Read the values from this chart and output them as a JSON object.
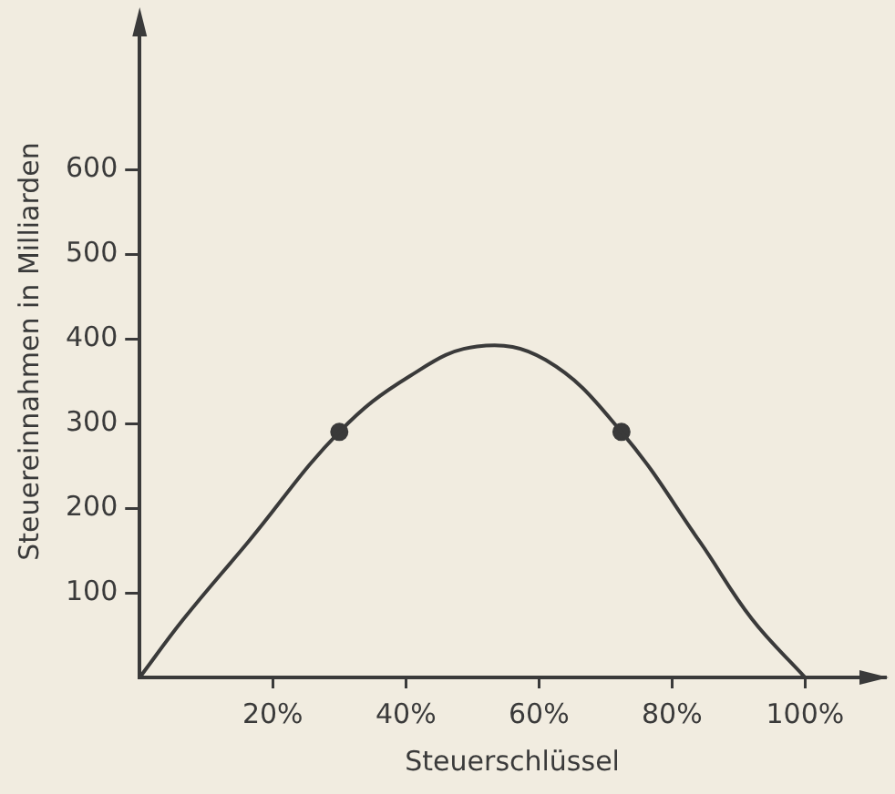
{
  "chart_data": {
    "type": "line",
    "xlabel": "Steuerschlüssel",
    "ylabel": "Steuereinnahmen in Milliarden",
    "xlim": [
      0,
      112
    ],
    "ylim": [
      0,
      770
    ],
    "xticks": [
      {
        "value": 20,
        "label": "20%"
      },
      {
        "value": 40,
        "label": "40%"
      },
      {
        "value": 60,
        "label": "60%"
      },
      {
        "value": 80,
        "label": "80%"
      },
      {
        "value": 100,
        "label": "100%"
      }
    ],
    "yticks": [
      100,
      200,
      300,
      400,
      500,
      600
    ],
    "grid": false,
    "legend": false,
    "series": [
      {
        "color": "#3a3a3a",
        "marker": "none",
        "x": [
          0,
          6.6,
          16.3,
          30,
          40.6,
          50.7,
          61,
          72.4,
          84.2,
          92,
          100
        ],
        "values": [
          0,
          69,
          160,
          290,
          356,
          391,
          375,
          290,
          160,
          69,
          0
        ]
      },
      {
        "type": "scatter",
        "color": "#3a3a3a",
        "marker": "circle",
        "x": [
          30,
          72.4
        ],
        "values": [
          290,
          290
        ]
      }
    ]
  }
}
